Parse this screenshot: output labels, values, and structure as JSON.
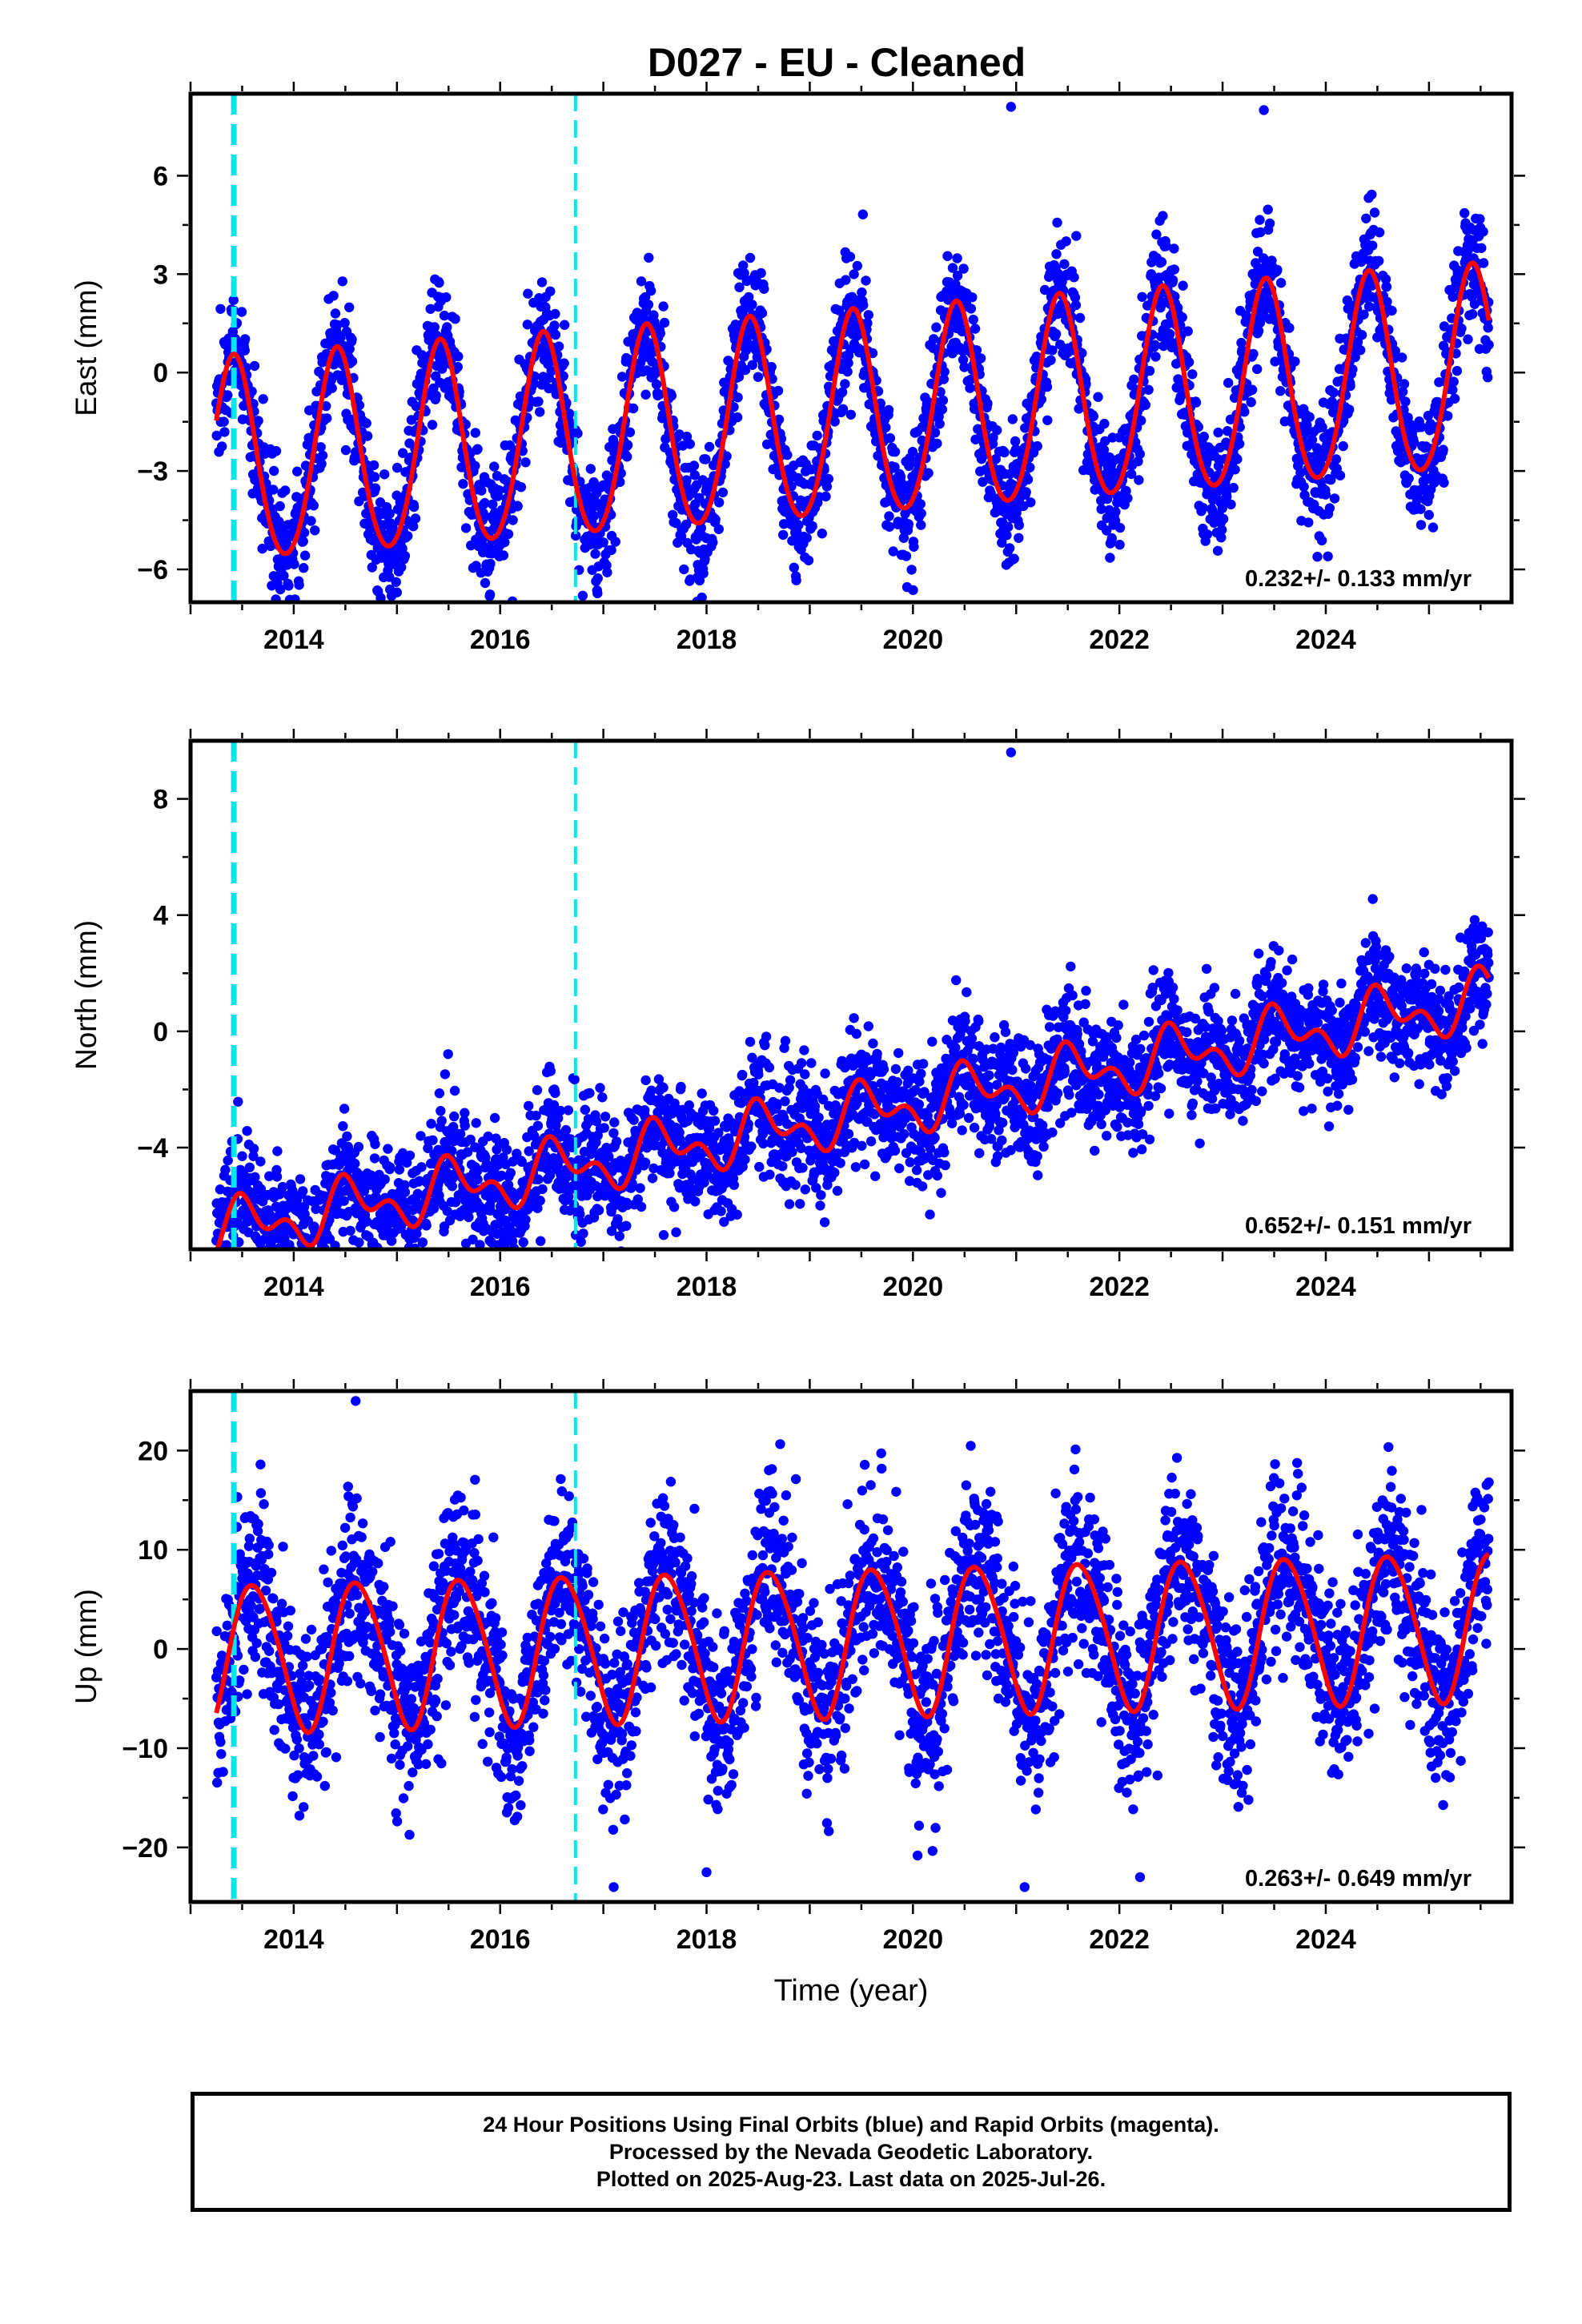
{
  "title": "D027  - EU - Cleaned",
  "x_axis_label": "Time (year)",
  "footer": {
    "line1": "24 Hour Positions Using Final Orbits (blue) and Rapid Orbits (magenta).",
    "line2": "Processed by the Nevada Geodetic Laboratory.",
    "line3": "Plotted on 2025-Aug-23. Last data on 2025-Jul-26."
  },
  "colors": {
    "points": "#0000ff",
    "fit": "#ff0000",
    "steps": "#00e5ee",
    "frame": "#000000"
  },
  "chart_data": [
    {
      "type": "scatter",
      "name": "east",
      "ylabel": "East (mm)",
      "xlim": [
        2013.0,
        2025.8
      ],
      "ylim": [
        -7.0,
        8.5
      ],
      "xticks": [
        2014,
        2016,
        2018,
        2020,
        2022,
        2024
      ],
      "yticks": [
        -6,
        -3,
        0,
        3,
        6
      ],
      "rate_label": "0.232+/- 0.133 mm/yr",
      "step_lines": [
        2013.42,
        2016.73
      ],
      "fit": {
        "start": 2013.25,
        "end": 2025.58,
        "offset": -1.4,
        "trend_mm_per_yr": 0.232,
        "annual_amp": 3.1,
        "annual_peak": 2013.42,
        "semiannual_amp": 0.25,
        "semiannual_peak": 2013.42,
        "step_offsets": [
          0,
          0.55
        ]
      },
      "scatter": {
        "noise_sd": 0.95,
        "outliers": [
          [
            2020.95,
            8.1
          ],
          [
            2016.8,
            -6.8
          ],
          [
            2015.0,
            -6.7
          ],
          [
            2023.4,
            8.0
          ]
        ]
      }
    },
    {
      "type": "scatter",
      "name": "north",
      "ylabel": "North (mm)",
      "xlim": [
        2013.0,
        2025.8
      ],
      "ylim": [
        -7.5,
        10.0
      ],
      "xticks": [
        2014,
        2016,
        2018,
        2020,
        2022,
        2024
      ],
      "yticks": [
        -4,
        0,
        4,
        8
      ],
      "rate_label": "0.652+/- 0.151 mm/yr",
      "step_lines": [
        2013.42,
        2016.73
      ],
      "fit": {
        "start": 2013.25,
        "end": 2025.58,
        "offset": -2.9,
        "trend_mm_per_yr": 0.652,
        "annual_amp": 0.75,
        "annual_peak": 2013.55,
        "semiannual_amp": 0.55,
        "semiannual_peak": 2013.45,
        "step_offsets": [
          0,
          0
        ]
      },
      "scatter": {
        "noise_sd": 1.05,
        "outliers": [
          [
            2020.95,
            9.6
          ],
          [
            2013.25,
            -7.2
          ],
          [
            2014.1,
            -7.1
          ],
          [
            2024.7,
            -0.6
          ]
        ]
      }
    },
    {
      "type": "scatter",
      "name": "up",
      "ylabel": "Up (mm)",
      "xlim": [
        2013.0,
        2025.8
      ],
      "ylim": [
        -25.5,
        26.0
      ],
      "xticks": [
        2014,
        2016,
        2018,
        2020,
        2022,
        2024
      ],
      "yticks": [
        -20,
        -10,
        0,
        10,
        20
      ],
      "rate_label": "0.263+/- 0.649 mm/yr",
      "step_lines": [
        2013.42,
        2016.73
      ],
      "fit": {
        "start": 2013.25,
        "end": 2025.58,
        "offset": 0.8,
        "trend_mm_per_yr": 0.263,
        "annual_amp": 7.4,
        "annual_peak": 2013.62,
        "semiannual_amp": 0.7,
        "semiannual_peak": 2013.45,
        "step_offsets": [
          0,
          0
        ]
      },
      "scatter": {
        "noise_sd": 4.6,
        "outliers": [
          [
            2014.6,
            25.0
          ],
          [
            2017.1,
            -24.0
          ],
          [
            2018.0,
            -22.5
          ],
          [
            2022.2,
            -23.0
          ]
        ]
      }
    }
  ]
}
